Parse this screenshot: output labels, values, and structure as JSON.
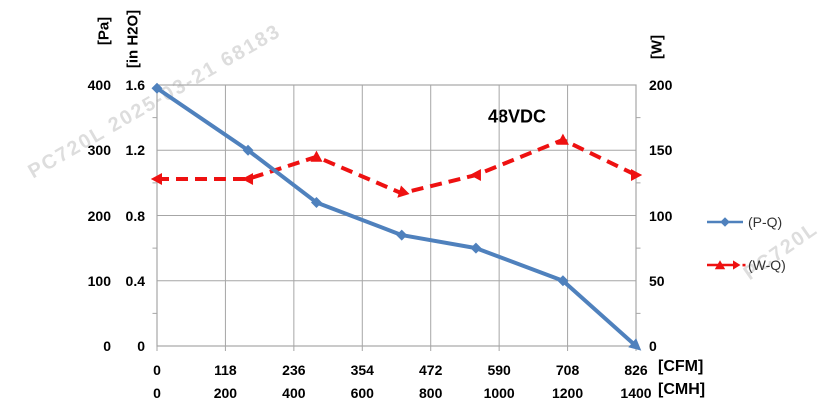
{
  "title": "48VDC",
  "watermarks": {
    "main": "PC720L 2025-03-21 68183",
    "right": "PC720L 20"
  },
  "legend": {
    "pq_label": "(P-Q)",
    "wq_label": "(W-Q)"
  },
  "colors": {
    "pq_blue": "#4F81BD",
    "wq_red": "#EE1111",
    "grid_gray": "#A6A6A6",
    "text_black": "#000000",
    "legend_text": "#333333"
  },
  "chart_data": {
    "type": "line",
    "title": "48VDC",
    "x_cfm": [
      0,
      157,
      275,
      422,
      550,
      700,
      826
    ],
    "x_cmh": [
      0,
      266,
      466,
      715,
      932,
      1186,
      1400
    ],
    "series": [
      {
        "name": "(P-Q)",
        "axis": "left_pa",
        "color": "#4F81BD",
        "line": "solid",
        "marker": "diamond",
        "values": [
          395,
          300,
          220,
          170,
          150,
          100,
          0
        ]
      },
      {
        "name": "(W-Q)",
        "axis": "right_w",
        "color": "#EE1111",
        "line": "dashed",
        "marker": "triangle",
        "values": [
          128,
          128,
          145,
          117,
          131,
          158,
          131
        ]
      }
    ],
    "axes": {
      "left_pa": {
        "unit": "[Pa]",
        "ticks": [
          400,
          300,
          200,
          100,
          0
        ],
        "range": [
          0,
          400
        ]
      },
      "left_inh2o": {
        "unit": "[in H2O]",
        "ticks": [
          "1.6",
          "1.2",
          "0.8",
          "0.4",
          "0"
        ],
        "range": [
          0,
          1.6
        ]
      },
      "right_w": {
        "unit": "[W]",
        "ticks": [
          200,
          150,
          100,
          50,
          0
        ],
        "range": [
          0,
          200
        ]
      },
      "bottom_cfm": {
        "unit": "[CFM]",
        "ticks": [
          0,
          118,
          236,
          354,
          472,
          590,
          708,
          826
        ],
        "range": [
          0,
          826
        ]
      },
      "bottom_cmh": {
        "unit": "[CMH]",
        "ticks": [
          0,
          200,
          400,
          600,
          800,
          1000,
          1200,
          1400
        ],
        "range": [
          0,
          1400
        ]
      }
    },
    "grid": true,
    "legend_position": "right-middle"
  }
}
